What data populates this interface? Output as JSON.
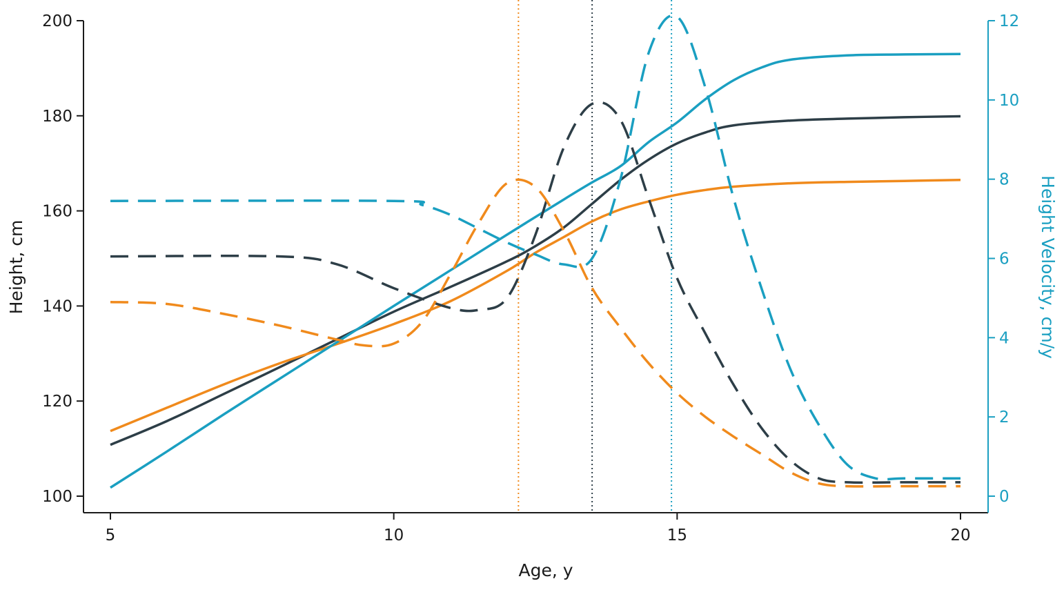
{
  "chart_data": {
    "type": "line",
    "title": "",
    "xlabel": "Age, y",
    "ylabel": "Height, cm",
    "y2label": "Height Velocity, cm/y",
    "xlim": [
      5,
      20
    ],
    "ylim": [
      100,
      200
    ],
    "y2lim": [
      0,
      12
    ],
    "xticks": [
      5,
      10,
      15,
      20
    ],
    "yticks": [
      100,
      120,
      140,
      160,
      180,
      200
    ],
    "y2ticks": [
      0,
      2,
      4,
      6,
      8,
      10,
      12
    ],
    "grid": false,
    "legend": "none",
    "colors": {
      "dark": "#2d3e47",
      "orange": "#f08a1c",
      "blue": "#1a9fc1",
      "axis_left": "#1a1a1a",
      "axis_right": "#1a9fc1"
    },
    "series": [
      {
        "axis": "left",
        "style": "solid",
        "color": "#2d3e47",
        "x": [
          5,
          6,
          7,
          8,
          9,
          10,
          11,
          12,
          12.5,
          13,
          13.5,
          14,
          14.5,
          15,
          15.5,
          16,
          17,
          18,
          19,
          20
        ],
        "y": [
          110.8,
          115.8,
          121.5,
          127.2,
          133,
          138.8,
          144,
          149.4,
          152.6,
          156.5,
          161.5,
          166.5,
          170.8,
          174.2,
          176.5,
          178,
          179,
          179.4,
          179.7,
          179.9
        ]
      },
      {
        "axis": "left",
        "style": "solid",
        "color": "#f08a1c",
        "x": [
          5,
          6,
          7,
          8,
          9,
          10,
          11,
          12,
          12.5,
          13,
          13.5,
          14,
          14.5,
          15,
          15.5,
          16,
          17,
          18,
          19,
          20
        ],
        "y": [
          113.7,
          118.6,
          123.5,
          128,
          132,
          136.2,
          141,
          147.4,
          151.2,
          154.5,
          157.8,
          160.3,
          162,
          163.4,
          164.4,
          165.1,
          165.8,
          166.1,
          166.3,
          166.5
        ]
      },
      {
        "axis": "left",
        "style": "solid",
        "color": "#1a9fc1",
        "x": [
          5,
          6,
          7,
          8,
          9,
          10,
          11,
          12,
          13,
          13.5,
          14,
          14.5,
          15,
          15.5,
          16,
          16.5,
          17,
          18,
          19,
          20
        ],
        "y": [
          101.8,
          109.4,
          117.2,
          124.8,
          132.4,
          140,
          147.5,
          155,
          162.4,
          166,
          169.4,
          174.5,
          178.6,
          183.5,
          187.5,
          190.2,
          191.8,
          192.7,
          192.9,
          193
        ]
      },
      {
        "axis": "right",
        "style": "dashed",
        "color": "#2d3e47",
        "x": [
          5,
          8,
          9,
          10,
          11,
          11.5,
          12,
          12.5,
          13,
          13.5,
          14,
          14.5,
          15,
          15.5,
          16,
          16.5,
          17,
          17.5,
          18,
          19,
          20
        ],
        "y": [
          6.05,
          6.05,
          5.85,
          5.25,
          4.75,
          4.7,
          5.0,
          6.6,
          8.8,
          9.9,
          9.5,
          7.5,
          5.5,
          4.1,
          2.8,
          1.7,
          0.9,
          0.45,
          0.35,
          0.35,
          0.35
        ]
      },
      {
        "axis": "right",
        "style": "dashed",
        "color": "#f08a1c",
        "x": [
          5,
          6,
          7,
          8,
          9,
          9.5,
          10,
          10.5,
          11,
          11.5,
          12,
          12.5,
          13,
          13.5,
          14,
          14.5,
          15,
          15.5,
          16,
          16.5,
          17,
          17.5,
          18,
          19,
          20
        ],
        "y": [
          4.9,
          4.85,
          4.6,
          4.3,
          3.95,
          3.8,
          3.85,
          4.4,
          5.6,
          6.9,
          7.9,
          7.8,
          6.7,
          5.25,
          4.25,
          3.35,
          2.6,
          2.0,
          1.5,
          1.05,
          0.6,
          0.32,
          0.25,
          0.25,
          0.25
        ]
      },
      {
        "axis": "right",
        "style": "dashed",
        "color": "#1a9fc1",
        "x": [
          5,
          10,
          10.5,
          11,
          11.5,
          12,
          12.5,
          13,
          13.5,
          14,
          14.5,
          15,
          15.5,
          16,
          16.5,
          17,
          17.5,
          18,
          18.5,
          19,
          20
        ],
        "y": [
          7.45,
          7.45,
          7.35,
          7.1,
          6.75,
          6.4,
          6.1,
          5.85,
          6.0,
          8.0,
          11.2,
          12.1,
          10.3,
          7.5,
          5.2,
          3.2,
          1.8,
          0.8,
          0.45,
          0.45,
          0.45
        ]
      }
    ],
    "reference_lines": [
      {
        "x": 12.2,
        "color": "#f08a1c",
        "style": "dotted"
      },
      {
        "x": 13.5,
        "color": "#2d3e47",
        "style": "dotted"
      },
      {
        "x": 14.9,
        "color": "#1a9fc1",
        "style": "dotted"
      }
    ]
  }
}
